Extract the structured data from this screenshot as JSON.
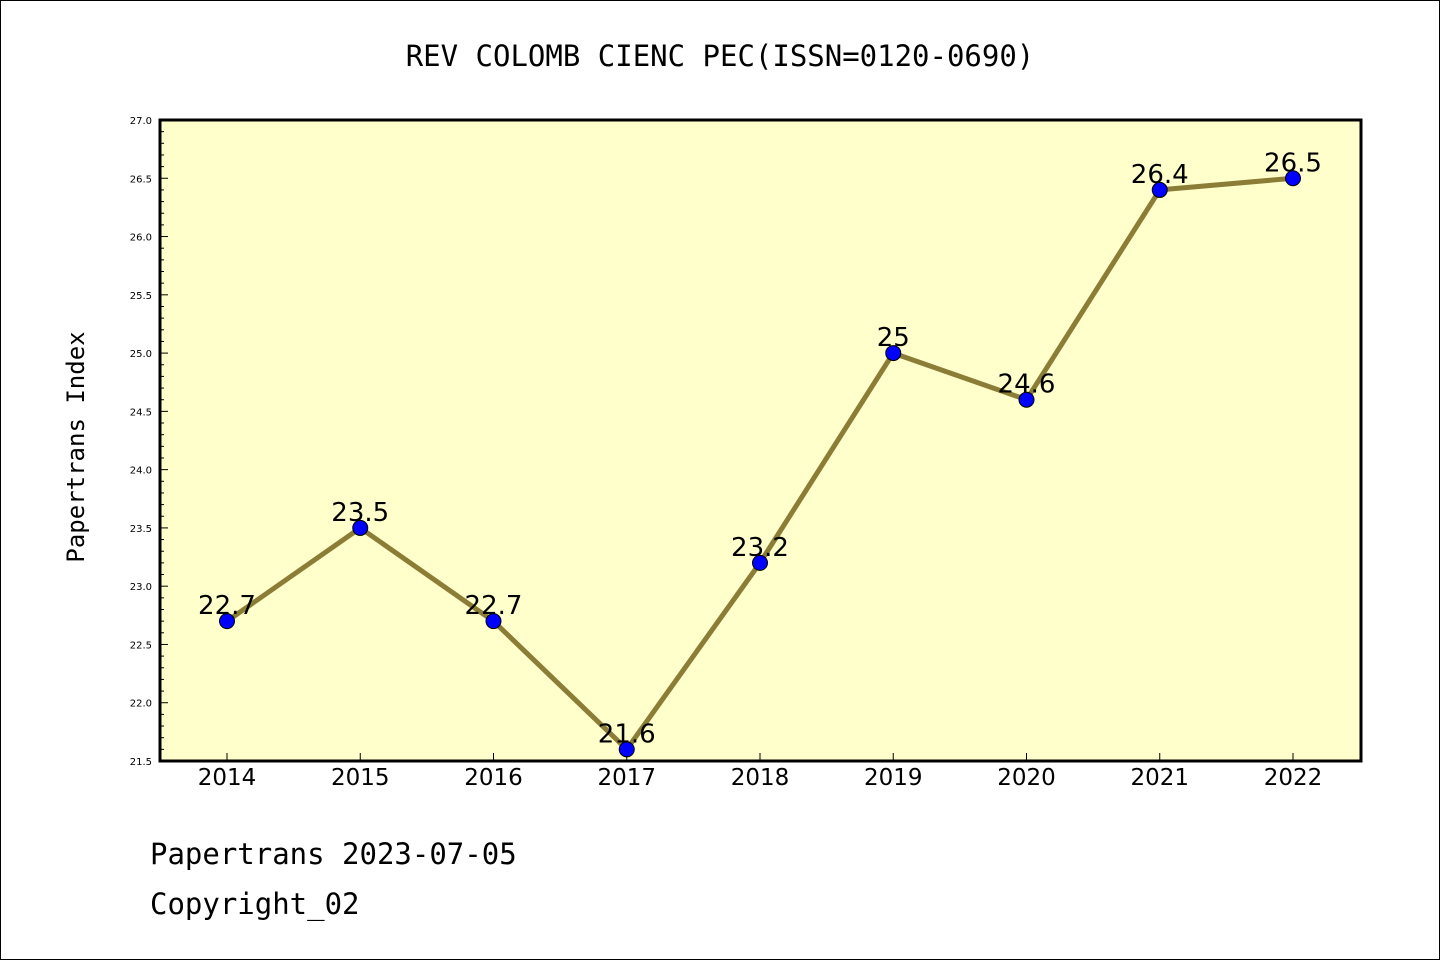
{
  "chart_data": {
    "type": "line",
    "title": "REV COLOMB CIENC PEC(ISSN=0120-0690)",
    "xlabel": "",
    "ylabel": "Papertrans Index",
    "categories": [
      "2014",
      "2015",
      "2016",
      "2017",
      "2018",
      "2019",
      "2020",
      "2021",
      "2022"
    ],
    "values": [
      22.7,
      23.5,
      22.7,
      21.6,
      23.2,
      25,
      24.6,
      26.4,
      26.5
    ],
    "data_labels": [
      "22.7",
      "23.5",
      "22.7",
      "21.6",
      "23.2",
      "25",
      "24.6",
      "26.4",
      "26.5"
    ],
    "ylim": [
      21.5,
      27.0
    ],
    "yticks": [
      "21.5",
      "22.0",
      "22.5",
      "23.0",
      "23.5",
      "24.0",
      "24.5",
      "25.0",
      "25.5",
      "26.0",
      "26.5",
      "27.0"
    ],
    "grid": false,
    "colors": {
      "plot_background": "#ffffcc",
      "line": "#8b7d36",
      "marker": "#0000ff"
    }
  },
  "footer": {
    "line1": "Papertrans 2023-07-05",
    "line2": "Copyright_02"
  }
}
